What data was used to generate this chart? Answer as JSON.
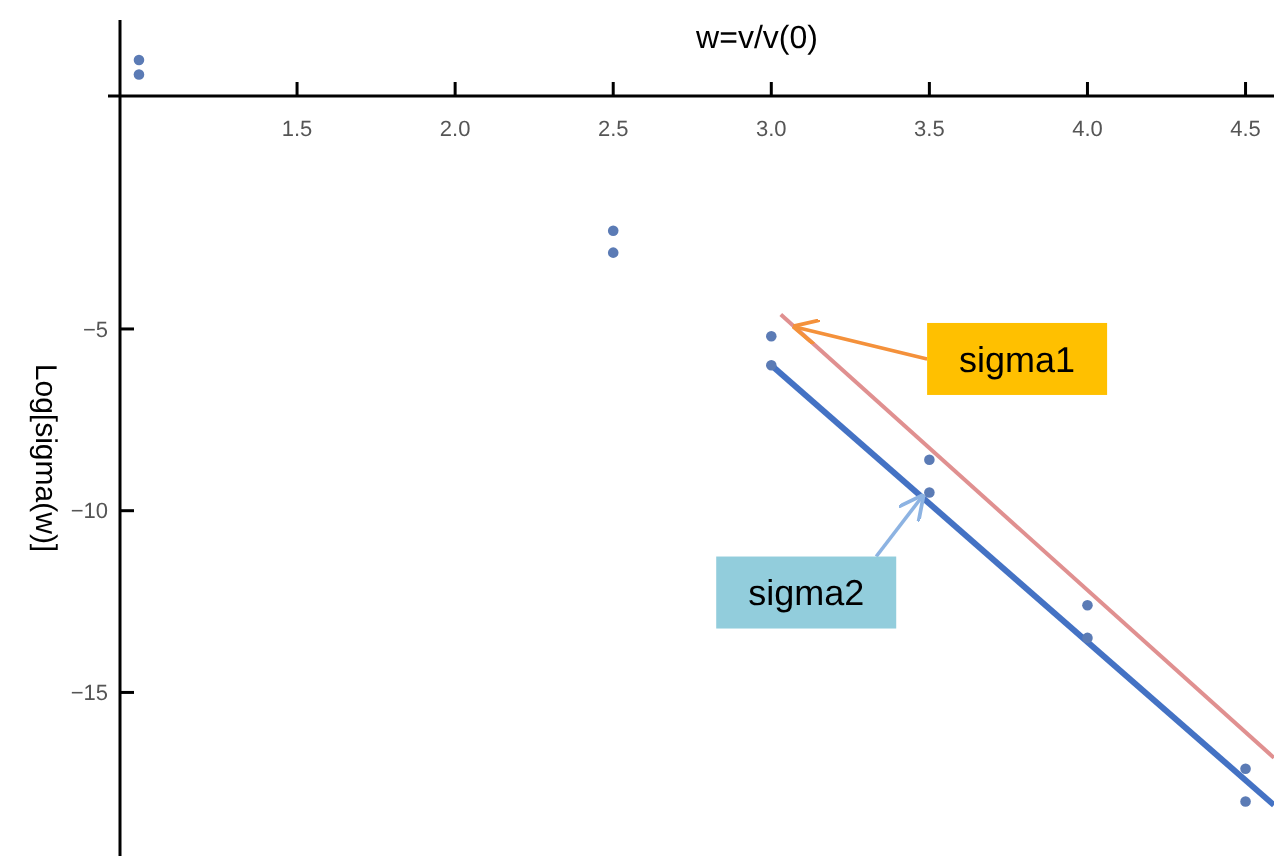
{
  "chart_data": {
    "type": "scatter",
    "xlabel": "w=v/v(0)",
    "ylabel": "Log[sigma(w)]",
    "xlim": [
      0.94,
      4.59
    ],
    "ylim": [
      -19.5,
      3.5
    ],
    "xticks": [
      1.5,
      {
        "value": 2,
        "label": "2.0"
      },
      2.5,
      {
        "value": 3,
        "label": "3.0"
      },
      3.5,
      {
        "value": 4,
        "label": "4.0"
      },
      4.5
    ],
    "yticks": [
      -5,
      -10,
      -15
    ],
    "marker": "circle",
    "grid": false,
    "series": [
      {
        "color": "#5b7bb5",
        "x": [
          1.0,
          2.5,
          3.0,
          3.5,
          4.0,
          4.5
        ],
        "values": [
          2.4,
          -2.3,
          -5.2,
          -8.6,
          -12.6,
          -17.1
        ]
      },
      {
        "color": "#5b7bb5",
        "x": [
          1.0,
          2.5,
          3.0,
          3.5,
          4.0,
          4.5
        ],
        "values": [
          2.0,
          -2.9,
          -6.0,
          -9.5,
          -13.5,
          -18.0
        ]
      },
      {
        "type": "line",
        "marker": "none",
        "color": "#e09090",
        "x": [
          3.03,
          4.59
        ],
        "values": [
          -4.6,
          -16.8
        ]
      },
      {
        "type": "line",
        "marker": "none",
        "color": "#4472c4",
        "x": [
          3.0,
          4.59
        ],
        "values": [
          -6.0,
          -18.1
        ]
      }
    ],
    "annotations": [
      {
        "text": "sigma1",
        "x": 3.05,
        "y": -5.0
      },
      {
        "text": "sigma2",
        "x": 3.49,
        "y": -9.5
      }
    ]
  }
}
